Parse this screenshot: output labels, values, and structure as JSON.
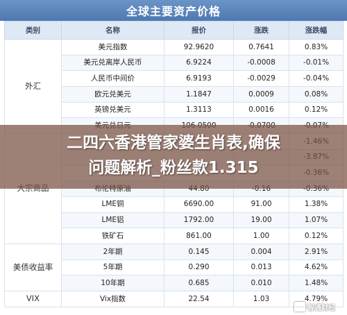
{
  "title": "全球主要资产价格",
  "headers": [
    "类别",
    "名称",
    "报价",
    "涨跌",
    "涨跌幅"
  ],
  "groups": [
    {
      "category": "外汇",
      "rows": [
        {
          "name": "美元指数",
          "price": "92.9620",
          "change": "0.7641",
          "pct": "0.83%"
        },
        {
          "name": "美元兑离岸人民币",
          "price": "6.9224",
          "change": "-0.0008",
          "pct": "-0.01%"
        },
        {
          "name": "人民币中间价",
          "price": "6.9193",
          "change": "-0.0029",
          "pct": "-0.04%"
        },
        {
          "name": "欧元兑美元",
          "price": "1.1847",
          "change": "0.0009",
          "pct": "0.08%"
        },
        {
          "name": "英镑兑美元",
          "price": "1.3113",
          "change": "0.0016",
          "pct": "0.12%"
        },
        {
          "name": "美元兑日元",
          "price": "106.0500",
          "change": "-0.0700",
          "pct": "-0.07%"
        }
      ]
    },
    {
      "category": "大宗商品",
      "rows": [
        {
          "name": "",
          "price": "",
          "change": "",
          "pct": "-1.46%"
        },
        {
          "name": "",
          "price": "",
          "change": "",
          "pct": "-3.87%"
        },
        {
          "name": "",
          "price": "",
          "change": "",
          "pct": "-0.36%"
        },
        {
          "name": "布伦特原油",
          "price": "44.80",
          "change": "-0.16",
          "pct": "-0.36%"
        },
        {
          "name": "LME铜",
          "price": "6690.00",
          "change": "91.00",
          "pct": "1.38%"
        },
        {
          "name": "LME铝",
          "price": "1792.00",
          "change": "19.00",
          "pct": "1.07%"
        },
        {
          "name": "铁矿石",
          "price": "861.00",
          "change": "1.00",
          "pct": "0.12%"
        }
      ]
    },
    {
      "category": "美债收益率",
      "rows": [
        {
          "name": "2年期",
          "price": "0.145",
          "change": "0.004",
          "pct": "2.91%"
        },
        {
          "name": "5年期",
          "price": "0.290",
          "change": "0.013",
          "pct": "4.62%"
        },
        {
          "name": "10年期",
          "price": "0.685",
          "change": "0.010",
          "pct": "1.48%"
        }
      ]
    },
    {
      "category": "VIX",
      "rows": [
        {
          "name": "Vix指数",
          "price": "22.54",
          "change": "1.03",
          "pct": "4.79%"
        }
      ]
    }
  ],
  "overlay": {
    "line1": "二四六香港管家婆生肖表,确保",
    "line2": "问题解析_粉丝款1.315"
  },
  "watermark": "智通财经"
}
